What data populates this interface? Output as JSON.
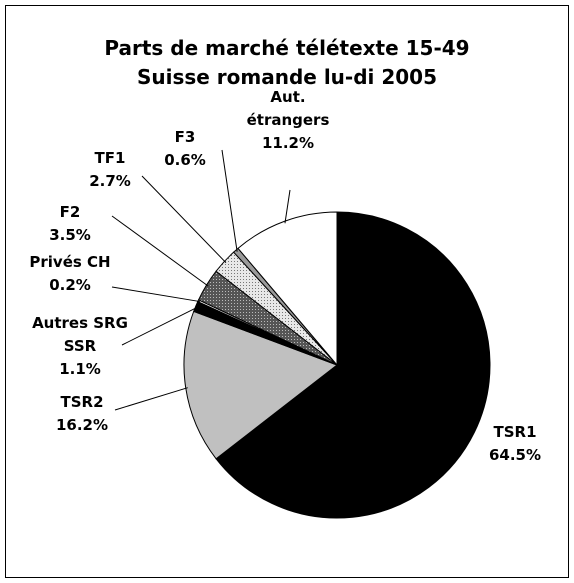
{
  "chart_data": {
    "type": "pie",
    "title": [
      "Parts de marché télétexte 15-49",
      "Suisse romande lu-di 2005"
    ],
    "categories": [
      "TSR1",
      "TSR2",
      "Autres SRG\nSSR",
      "Privés CH",
      "F2",
      "TF1",
      "F3",
      "Aut.\nétrangers"
    ],
    "values": [
      64.5,
      16.2,
      1.1,
      0.2,
      3.5,
      2.7,
      0.6,
      11.2
    ],
    "value_labels": [
      "64.5%",
      "16.2%",
      "1.1%",
      "0.2%",
      "3.5%",
      "2.7%",
      "0.6%",
      "11.2%"
    ],
    "colors": [
      "#000000",
      "#c0c0c0",
      "#000000",
      "#ffffff",
      "#6e6e6e",
      "#e4e4e4",
      "#9a9a9a",
      "#ffffff"
    ]
  }
}
